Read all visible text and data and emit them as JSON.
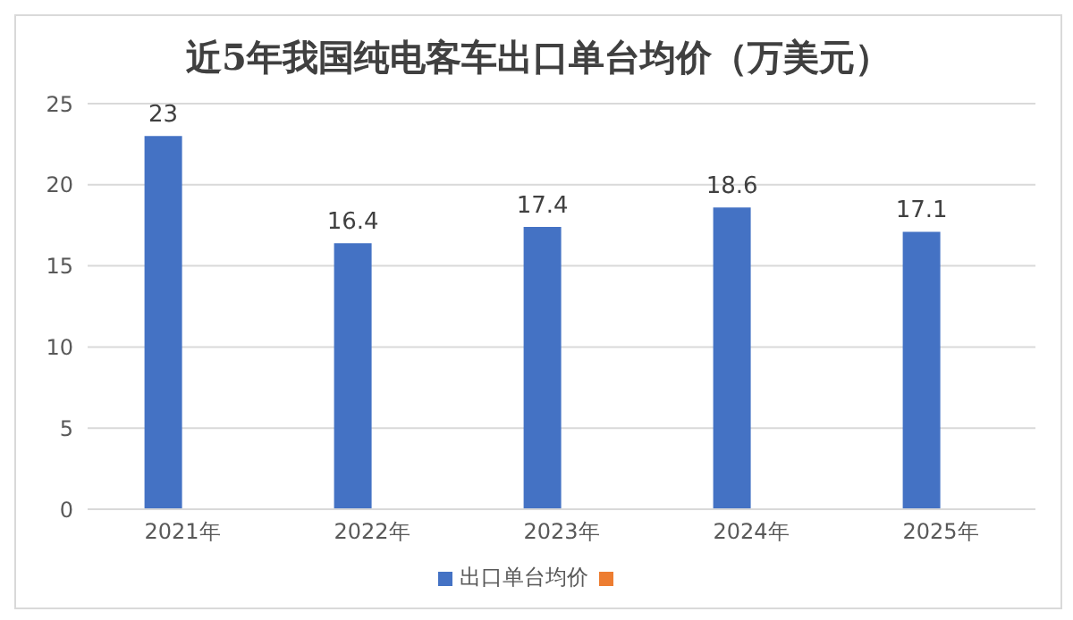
{
  "chart_data": {
    "type": "bar",
    "title": "近5年我国纯电客车出口单台均价（万美元）",
    "categories": [
      "2021年",
      "2022年",
      "2023年",
      "2024年",
      "2025年"
    ],
    "series": [
      {
        "name": "出口单台均价",
        "color": "#4472c4",
        "values": [
          23,
          16.4,
          17.4,
          18.6,
          17.1
        ]
      },
      {
        "color": "#ed7d31",
        "values": [
          null,
          null,
          null,
          null,
          null
        ]
      }
    ],
    "ylim": [
      0,
      25
    ],
    "yticks": [
      0,
      5,
      10,
      15,
      20,
      25
    ],
    "grid": "y",
    "legend": "bottom",
    "data_labels": true
  }
}
